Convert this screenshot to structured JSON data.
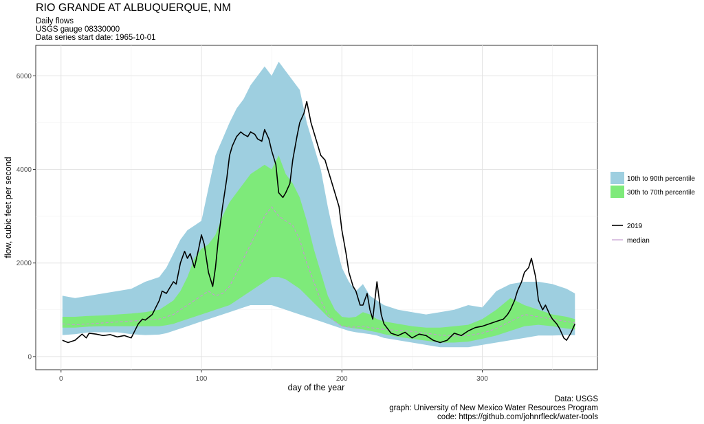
{
  "chart_data": {
    "type": "area",
    "title": "RIO GRANDE AT ALBUQUERQUE, NM",
    "subtitle_lines": [
      "Daily flows",
      "USGS gauge  08330000",
      "Data series start date:  1965-10-01"
    ],
    "xlabel": "day of the year",
    "ylabel": "flow, cubic feet per second",
    "xlim": [
      -18,
      382
    ],
    "ylim": [
      -280,
      6650
    ],
    "x_ticks": [
      0,
      100,
      200,
      300
    ],
    "y_ticks": [
      0,
      2000,
      4000,
      6000
    ],
    "grid": true,
    "legend_position": "right",
    "bands": [
      {
        "name": "10th to 90th percentile",
        "color": "#9ecfe0",
        "x": [
          1,
          10,
          20,
          30,
          40,
          50,
          60,
          70,
          75,
          80,
          85,
          90,
          95,
          100,
          105,
          110,
          115,
          120,
          125,
          130,
          135,
          140,
          145,
          150,
          155,
          160,
          165,
          170,
          175,
          180,
          185,
          190,
          195,
          200,
          205,
          210,
          215,
          220,
          225,
          230,
          240,
          250,
          260,
          270,
          280,
          290,
          300,
          310,
          320,
          330,
          340,
          350,
          360,
          366
        ],
        "lower": [
          460,
          480,
          520,
          520,
          520,
          480,
          460,
          470,
          500,
          550,
          600,
          650,
          700,
          750,
          800,
          850,
          900,
          950,
          1000,
          1050,
          1100,
          1100,
          1100,
          1100,
          1050,
          1000,
          950,
          900,
          850,
          800,
          750,
          700,
          650,
          600,
          550,
          520,
          500,
          480,
          450,
          400,
          350,
          300,
          250,
          200,
          200,
          200,
          250,
          300,
          350,
          400,
          450,
          450,
          460,
          460
        ],
        "upper": [
          1300,
          1250,
          1300,
          1350,
          1400,
          1450,
          1600,
          1700,
          1900,
          2200,
          2500,
          2700,
          2800,
          2900,
          3600,
          4300,
          4650,
          5000,
          5300,
          5500,
          5800,
          6000,
          6200,
          6000,
          6300,
          6100,
          5900,
          5700,
          5000,
          4500,
          4000,
          3200,
          2500,
          1900,
          1600,
          1400,
          1550,
          1300,
          1200,
          1100,
          1000,
          950,
          900,
          950,
          1000,
          1100,
          1050,
          1400,
          1550,
          1600,
          1600,
          1550,
          1450,
          1350
        ]
      },
      {
        "name": "30th to 70th percentile",
        "color": "#7eea7a",
        "x": [
          1,
          10,
          20,
          30,
          40,
          50,
          60,
          70,
          75,
          80,
          85,
          90,
          95,
          100,
          105,
          110,
          115,
          120,
          125,
          130,
          135,
          140,
          145,
          150,
          155,
          160,
          165,
          170,
          175,
          180,
          185,
          190,
          195,
          200,
          205,
          210,
          215,
          220,
          225,
          230,
          240,
          250,
          260,
          270,
          280,
          290,
          300,
          310,
          320,
          330,
          340,
          350,
          360,
          366
        ],
        "lower": [
          620,
          620,
          640,
          650,
          650,
          650,
          650,
          650,
          670,
          700,
          750,
          800,
          850,
          900,
          950,
          1000,
          1050,
          1100,
          1200,
          1300,
          1400,
          1500,
          1600,
          1700,
          1700,
          1650,
          1550,
          1450,
          1300,
          1150,
          1000,
          850,
          750,
          650,
          620,
          600,
          580,
          550,
          520,
          480,
          420,
          380,
          340,
          300,
          300,
          320,
          380,
          450,
          550,
          650,
          680,
          650,
          600,
          580
        ],
        "upper": [
          850,
          850,
          870,
          880,
          900,
          920,
          950,
          1000,
          1100,
          1200,
          1400,
          1700,
          2100,
          2300,
          2400,
          2600,
          3000,
          3300,
          3500,
          3700,
          3900,
          4000,
          4100,
          4000,
          4300,
          3900,
          3700,
          3400,
          2900,
          2300,
          1800,
          1300,
          1000,
          850,
          830,
          850,
          950,
          900,
          800,
          750,
          700,
          650,
          620,
          620,
          650,
          680,
          800,
          1000,
          1250,
          1100,
          1000,
          900,
          850,
          800
        ]
      }
    ],
    "series": [
      {
        "name": "2019",
        "color": "#000000",
        "style": "solid",
        "x": [
          1,
          5,
          10,
          15,
          18,
          20,
          25,
          30,
          35,
          40,
          45,
          50,
          55,
          58,
          60,
          65,
          70,
          72,
          75,
          80,
          82,
          85,
          88,
          90,
          92,
          95,
          98,
          100,
          102,
          105,
          108,
          110,
          112,
          115,
          118,
          120,
          122,
          125,
          128,
          130,
          133,
          135,
          138,
          140,
          143,
          145,
          148,
          150,
          153,
          155,
          158,
          160,
          163,
          165,
          168,
          170,
          173,
          175,
          178,
          180,
          183,
          185,
          188,
          190,
          193,
          195,
          198,
          200,
          203,
          205,
          208,
          210,
          213,
          215,
          218,
          220,
          222,
          225,
          228,
          230,
          235,
          240,
          245,
          250,
          255,
          260,
          265,
          270,
          275,
          280,
          285,
          290,
          295,
          300,
          305,
          310,
          315,
          318,
          320,
          323,
          325,
          328,
          330,
          333,
          335,
          338,
          340,
          343,
          345,
          348,
          350,
          353,
          355,
          358,
          360,
          363,
          366
        ],
        "y": [
          350,
          300,
          350,
          480,
          400,
          500,
          480,
          450,
          470,
          420,
          450,
          400,
          700,
          800,
          780,
          900,
          1200,
          1400,
          1350,
          1600,
          1550,
          2000,
          2250,
          2100,
          2200,
          1900,
          2300,
          2600,
          2400,
          1800,
          1500,
          1900,
          2500,
          3200,
          3800,
          4300,
          4500,
          4700,
          4800,
          4750,
          4700,
          4800,
          4750,
          4650,
          4600,
          4850,
          4650,
          4400,
          4100,
          3500,
          3400,
          3500,
          3700,
          4200,
          4700,
          5000,
          5200,
          5450,
          5000,
          4800,
          4500,
          4300,
          4200,
          4000,
          3700,
          3500,
          3200,
          2700,
          2200,
          1800,
          1500,
          1400,
          1100,
          1100,
          1350,
          1000,
          800,
          1600,
          900,
          700,
          500,
          450,
          520,
          400,
          480,
          450,
          350,
          300,
          350,
          500,
          450,
          550,
          620,
          650,
          700,
          750,
          800,
          900,
          1000,
          1200,
          1400,
          1600,
          1800,
          1900,
          2100,
          1700,
          1200,
          1000,
          1100,
          900,
          800,
          700,
          600,
          400,
          350,
          500,
          700
        ]
      },
      {
        "name": "median",
        "color": "#c39bcf",
        "style": "dashed",
        "x": [
          1,
          10,
          20,
          30,
          40,
          50,
          60,
          70,
          75,
          80,
          85,
          90,
          95,
          100,
          105,
          110,
          115,
          120,
          125,
          130,
          135,
          140,
          145,
          150,
          155,
          160,
          165,
          170,
          175,
          180,
          185,
          190,
          195,
          200,
          205,
          210,
          215,
          220,
          225,
          230,
          240,
          250,
          260,
          270,
          280,
          290,
          300,
          310,
          320,
          330,
          340,
          350,
          360,
          366
        ],
        "y": [
          700,
          680,
          700,
          720,
          740,
          760,
          780,
          800,
          850,
          900,
          1000,
          1100,
          1200,
          1300,
          1400,
          1300,
          1350,
          1500,
          1800,
          2100,
          2400,
          2700,
          3000,
          3200,
          3000,
          2900,
          2800,
          2500,
          2000,
          1600,
          1200,
          900,
          750,
          650,
          630,
          630,
          650,
          620,
          600,
          580,
          560,
          540,
          500,
          460,
          440,
          450,
          500,
          600,
          750,
          900,
          850,
          800,
          750,
          720
        ]
      }
    ],
    "caption_lines": [
      "Data: USGS",
      "graph: University of New Mexico Water Resources Program",
      "code: https://github.com/johnrfleck/water-tools"
    ]
  }
}
